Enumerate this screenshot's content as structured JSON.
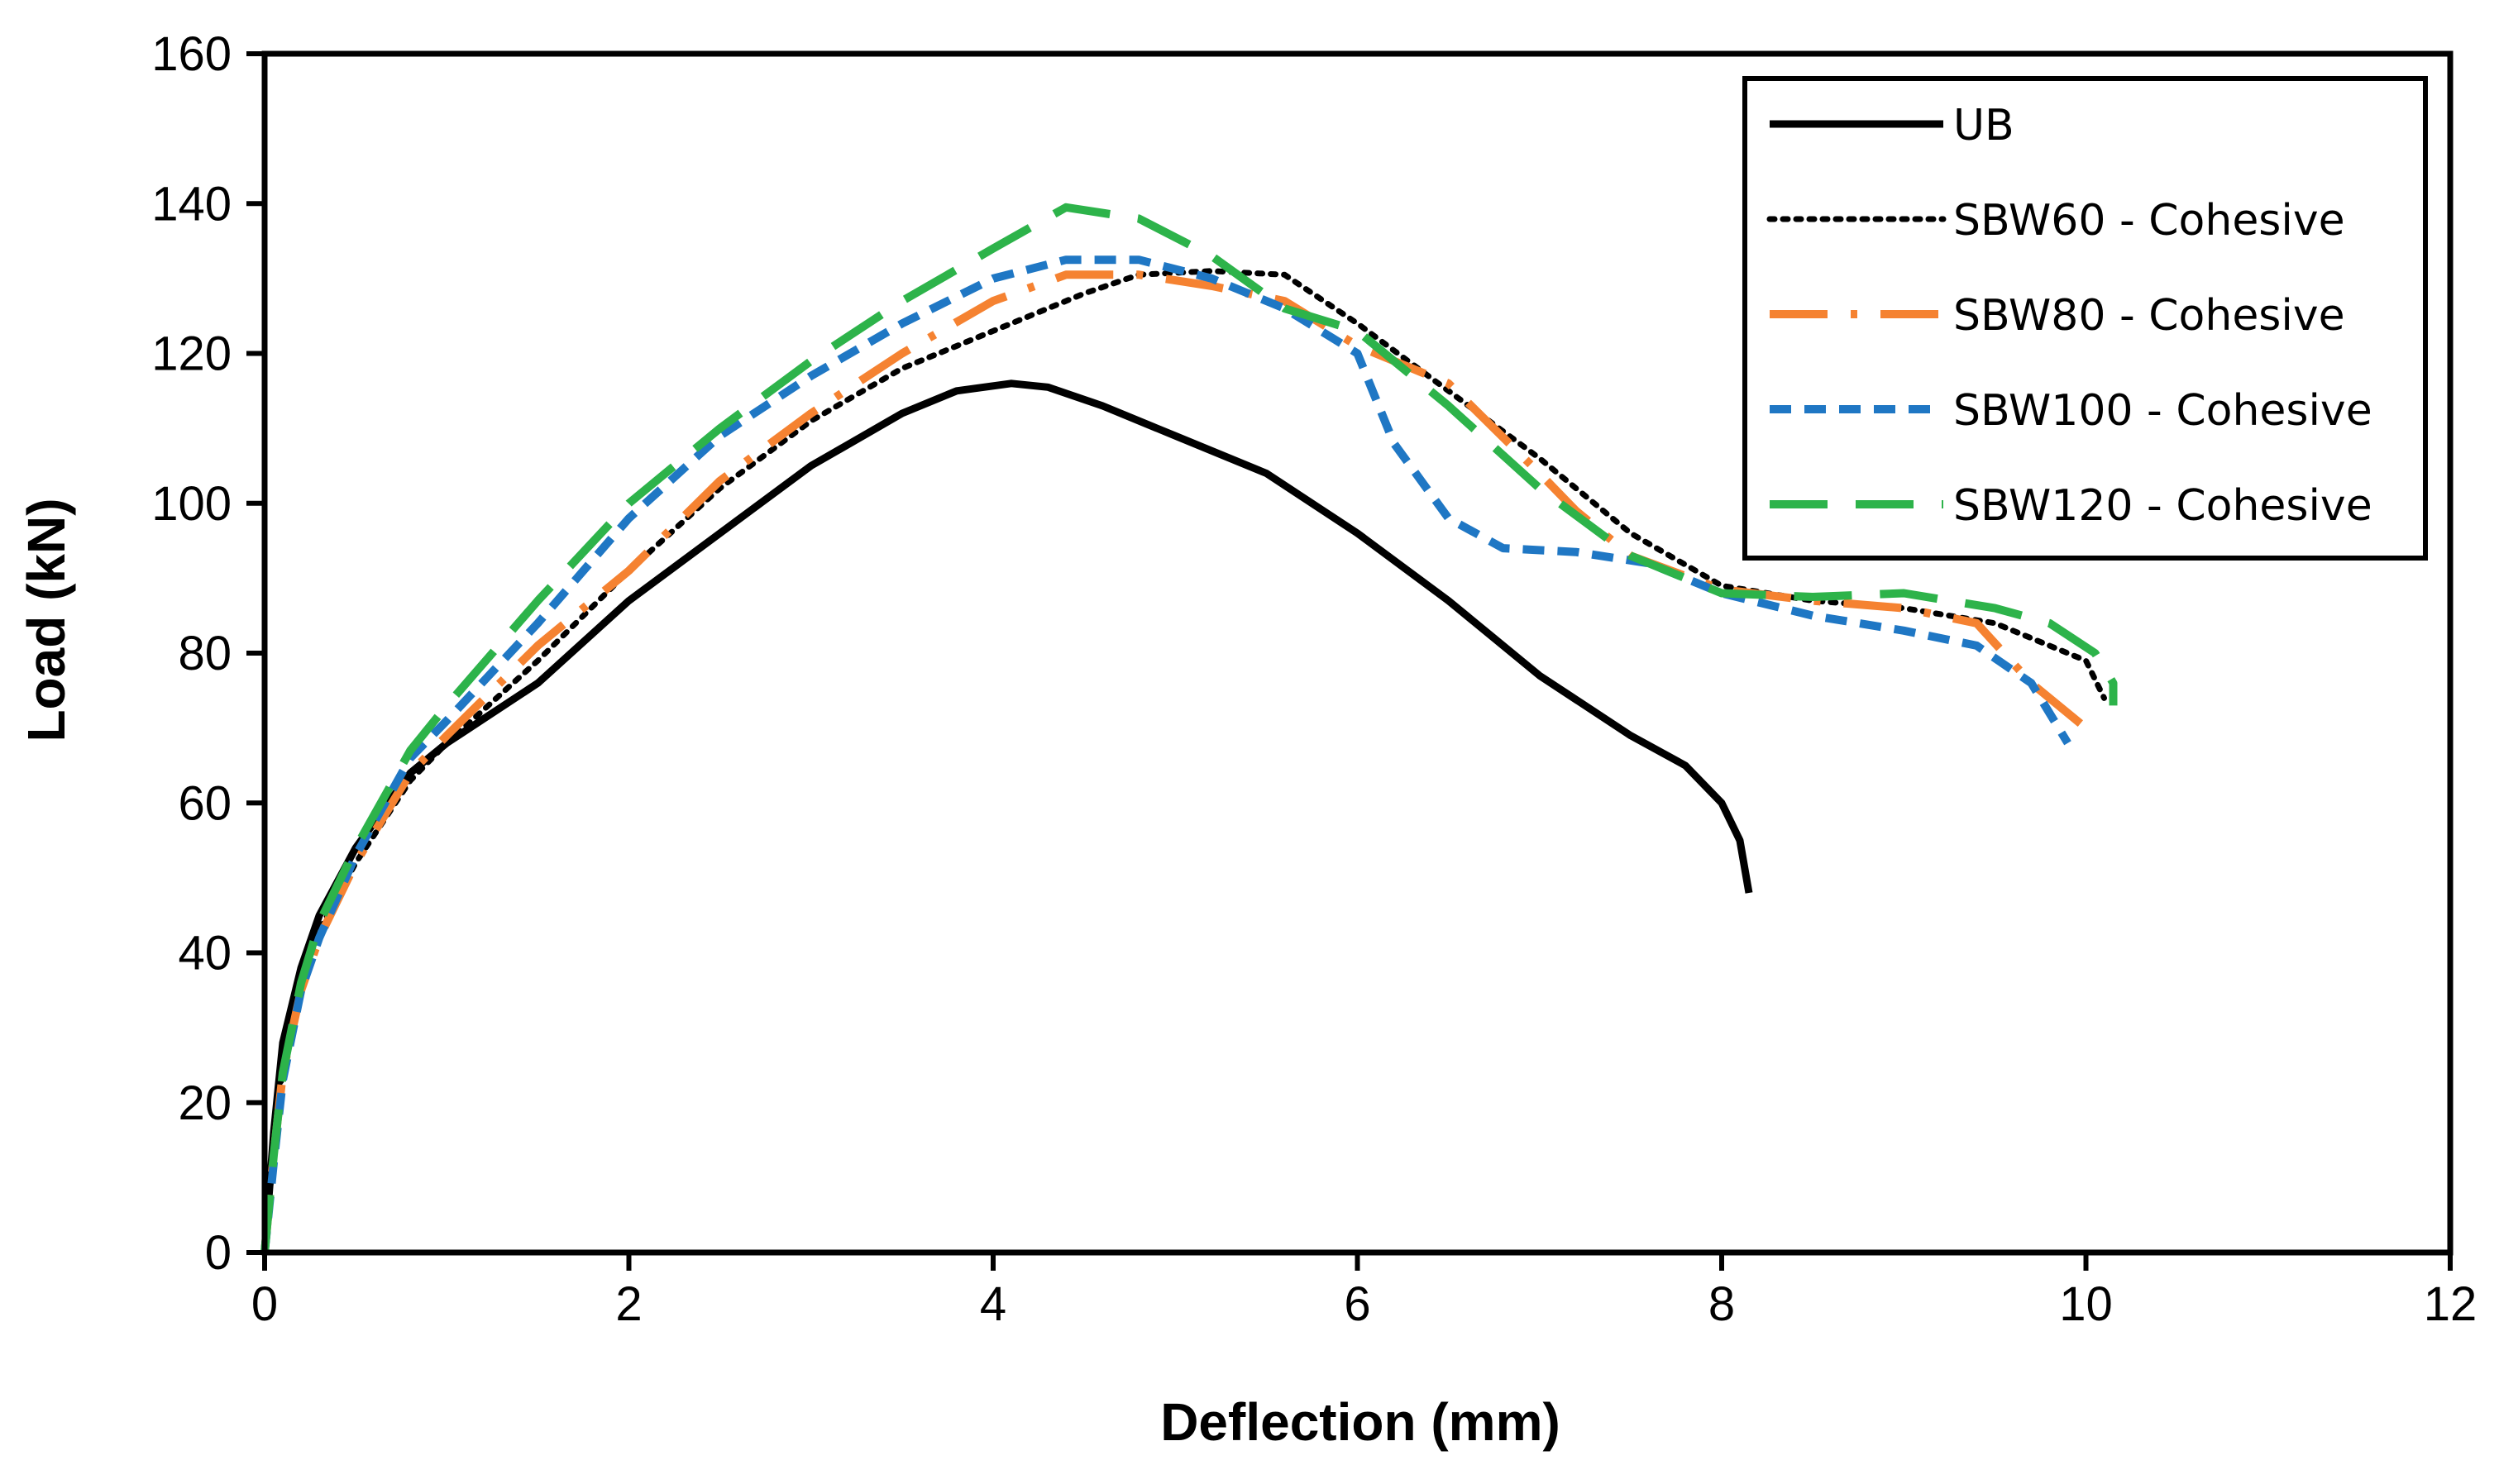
{
  "chart_data": {
    "type": "line",
    "title": "",
    "xlabel": "Deflection (mm)",
    "ylabel": "Load (kN)",
    "xlim": [
      0,
      12
    ],
    "ylim": [
      0,
      160
    ],
    "xticks": [
      0,
      2,
      4,
      6,
      8,
      10,
      12
    ],
    "yticks": [
      0,
      20,
      40,
      60,
      80,
      100,
      120,
      140,
      160
    ],
    "xtick_labels": [
      "0",
      "2",
      "4",
      "6",
      "8",
      "10",
      "12"
    ],
    "ytick_labels": [
      "0",
      "20",
      "40",
      "60",
      "80",
      "100",
      "120",
      "140",
      "160"
    ],
    "grid": false,
    "legend_position": "top-right",
    "series": [
      {
        "name": "UB",
        "color": "#000000",
        "style": "solid",
        "points": [
          [
            0,
            0
          ],
          [
            0.05,
            16
          ],
          [
            0.1,
            28
          ],
          [
            0.2,
            38
          ],
          [
            0.3,
            45
          ],
          [
            0.5,
            54
          ],
          [
            0.8,
            64
          ],
          [
            1.0,
            68
          ],
          [
            1.5,
            76
          ],
          [
            2.0,
            87
          ],
          [
            2.5,
            96
          ],
          [
            3.0,
            105
          ],
          [
            3.5,
            112
          ],
          [
            3.8,
            115
          ],
          [
            4.1,
            116
          ],
          [
            4.3,
            115.5
          ],
          [
            4.6,
            113
          ],
          [
            5.0,
            109
          ],
          [
            5.5,
            104
          ],
          [
            6.0,
            96
          ],
          [
            6.5,
            87
          ],
          [
            7.0,
            77
          ],
          [
            7.5,
            69
          ],
          [
            7.8,
            65
          ],
          [
            8.0,
            60
          ],
          [
            8.1,
            55
          ],
          [
            8.15,
            48
          ]
        ]
      },
      {
        "name": "SBW60 - Cohesive",
        "color": "#000000",
        "style": "dotted",
        "points": [
          [
            0,
            0
          ],
          [
            0.05,
            14
          ],
          [
            0.1,
            25
          ],
          [
            0.2,
            36
          ],
          [
            0.3,
            43
          ],
          [
            0.5,
            52
          ],
          [
            0.8,
            63
          ],
          [
            1.0,
            68
          ],
          [
            1.5,
            79
          ],
          [
            2.0,
            91
          ],
          [
            2.5,
            102
          ],
          [
            3.0,
            111
          ],
          [
            3.5,
            118
          ],
          [
            4.0,
            123
          ],
          [
            4.5,
            128
          ],
          [
            4.8,
            130.5
          ],
          [
            5.2,
            131
          ],
          [
            5.6,
            130.5
          ],
          [
            6.0,
            124
          ],
          [
            6.5,
            115
          ],
          [
            7.0,
            106
          ],
          [
            7.5,
            96
          ],
          [
            8.0,
            89
          ],
          [
            8.5,
            87
          ],
          [
            9.0,
            86
          ],
          [
            9.5,
            84
          ],
          [
            10.0,
            79
          ],
          [
            10.1,
            74
          ]
        ]
      },
      {
        "name": "SBW80 - Cohesive",
        "color": "#f58231",
        "style": "dashdot",
        "points": [
          [
            0,
            0
          ],
          [
            0.05,
            13
          ],
          [
            0.1,
            24
          ],
          [
            0.2,
            35
          ],
          [
            0.3,
            42
          ],
          [
            0.5,
            52
          ],
          [
            0.8,
            64
          ],
          [
            1.0,
            69
          ],
          [
            1.5,
            81
          ],
          [
            2.0,
            91
          ],
          [
            2.5,
            103
          ],
          [
            3.0,
            112
          ],
          [
            3.5,
            120
          ],
          [
            4.0,
            127
          ],
          [
            4.4,
            130.5
          ],
          [
            4.8,
            130.5
          ],
          [
            5.2,
            129
          ],
          [
            5.6,
            127
          ],
          [
            6.0,
            121
          ],
          [
            6.5,
            116
          ],
          [
            7.0,
            104
          ],
          [
            7.2,
            99
          ],
          [
            7.5,
            93
          ],
          [
            8.0,
            88.5
          ],
          [
            8.5,
            87
          ],
          [
            9.0,
            86
          ],
          [
            9.4,
            84
          ],
          [
            9.7,
            76
          ],
          [
            10.0,
            70
          ]
        ]
      },
      {
        "name": "SBW100 - Cohesive",
        "color": "#1f77c4",
        "style": "dashed",
        "points": [
          [
            0,
            0
          ],
          [
            0.05,
            12
          ],
          [
            0.1,
            23
          ],
          [
            0.2,
            35
          ],
          [
            0.3,
            42
          ],
          [
            0.5,
            53
          ],
          [
            0.8,
            66
          ],
          [
            1.0,
            71
          ],
          [
            1.5,
            84
          ],
          [
            2.0,
            98
          ],
          [
            2.5,
            109
          ],
          [
            3.0,
            117
          ],
          [
            3.5,
            124
          ],
          [
            4.0,
            130
          ],
          [
            4.4,
            132.5
          ],
          [
            4.8,
            132.5
          ],
          [
            5.2,
            130
          ],
          [
            5.6,
            126
          ],
          [
            6.0,
            120
          ],
          [
            6.2,
            108
          ],
          [
            6.5,
            98
          ],
          [
            6.8,
            94
          ],
          [
            7.2,
            93.5
          ],
          [
            7.6,
            92
          ],
          [
            8.0,
            88
          ],
          [
            8.5,
            85
          ],
          [
            9.0,
            83
          ],
          [
            9.4,
            81
          ],
          [
            9.7,
            76
          ],
          [
            9.9,
            68
          ]
        ]
      },
      {
        "name": "SBW120 - Cohesive",
        "color": "#2db34a",
        "style": "longdash",
        "points": [
          [
            0,
            0
          ],
          [
            0.05,
            13
          ],
          [
            0.1,
            24
          ],
          [
            0.2,
            36
          ],
          [
            0.3,
            44
          ],
          [
            0.5,
            54
          ],
          [
            0.8,
            67
          ],
          [
            1.0,
            73
          ],
          [
            1.5,
            87
          ],
          [
            2.0,
            100
          ],
          [
            2.5,
            110
          ],
          [
            3.0,
            119
          ],
          [
            3.5,
            127
          ],
          [
            4.0,
            134
          ],
          [
            4.4,
            139.5
          ],
          [
            4.8,
            138
          ],
          [
            5.2,
            133
          ],
          [
            5.6,
            126
          ],
          [
            6.0,
            123
          ],
          [
            6.5,
            113
          ],
          [
            7.0,
            102
          ],
          [
            7.5,
            93
          ],
          [
            8.0,
            88
          ],
          [
            8.5,
            87.5
          ],
          [
            9.0,
            88
          ],
          [
            9.5,
            86
          ],
          [
            9.8,
            84
          ],
          [
            10.05,
            80
          ],
          [
            10.15,
            76
          ],
          [
            10.15,
            73
          ]
        ]
      }
    ]
  }
}
